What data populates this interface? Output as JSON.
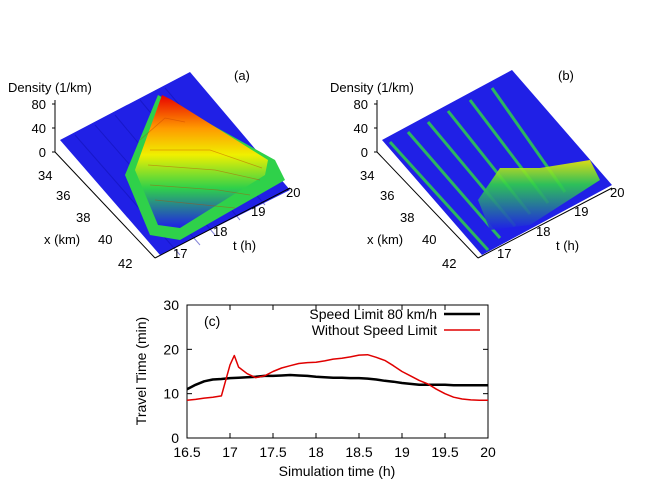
{
  "chart_data": [
    {
      "type": "surface",
      "panel_label": "(a)",
      "zlabel": "Density (1/km)",
      "z_ticks": [
        "0",
        "40",
        "80"
      ],
      "xlabel": "x (km)",
      "x_ticks": [
        "34",
        "36",
        "38",
        "40",
        "42"
      ],
      "ylabel": "t (h)",
      "t_ticks": [
        "17",
        "18",
        "19",
        "20"
      ],
      "color_stops": [
        "#1f1fe8",
        "#2fd14a",
        "#f0f000",
        "#ff9a00",
        "#e80000"
      ]
    },
    {
      "type": "surface",
      "panel_label": "(b)",
      "zlabel": "Density (1/km)",
      "z_ticks": [
        "0",
        "40",
        "80"
      ],
      "xlabel": "x (km)",
      "x_ticks": [
        "34",
        "36",
        "38",
        "40",
        "42"
      ],
      "ylabel": "t (h)",
      "t_ticks": [
        "17",
        "18",
        "19",
        "20"
      ],
      "color_stops": [
        "#1f1fe8",
        "#2fd14a",
        "#f0f000"
      ]
    },
    {
      "type": "line",
      "panel_label": "(c)",
      "xlabel": "Simulation time (h)",
      "ylabel": "Travel Time (min)",
      "xlim": [
        16.5,
        20
      ],
      "ylim": [
        0,
        30
      ],
      "x_ticks": [
        "16.5",
        "17",
        "17.5",
        "18",
        "18.5",
        "19",
        "19.5",
        "20"
      ],
      "y_ticks": [
        "0",
        "10",
        "20",
        "30"
      ],
      "legend_position": "top-right",
      "series": [
        {
          "name": "Speed Limit 80 km/h",
          "color": "#000000",
          "x": [
            16.5,
            16.6,
            16.7,
            16.8,
            16.9,
            17.0,
            17.1,
            17.2,
            17.3,
            17.4,
            17.5,
            17.6,
            17.7,
            17.8,
            17.9,
            18.0,
            18.1,
            18.2,
            18.3,
            18.4,
            18.5,
            18.6,
            18.7,
            18.8,
            18.9,
            19.0,
            19.1,
            19.2,
            19.3,
            19.4,
            19.5,
            19.6,
            19.7,
            19.8,
            19.9,
            20.0
          ],
          "y": [
            11.0,
            12.0,
            12.8,
            13.2,
            13.3,
            13.5,
            13.6,
            13.7,
            13.8,
            14.0,
            14.0,
            14.1,
            14.2,
            14.1,
            14.0,
            13.8,
            13.7,
            13.6,
            13.6,
            13.5,
            13.5,
            13.4,
            13.2,
            12.9,
            12.7,
            12.4,
            12.2,
            12.0,
            12.0,
            12.0,
            12.0,
            11.9,
            11.9,
            11.9,
            11.9,
            11.9
          ]
        },
        {
          "name": "Without Speed Limit",
          "color": "#e00000",
          "x": [
            16.5,
            16.6,
            16.7,
            16.8,
            16.9,
            16.95,
            17.0,
            17.05,
            17.1,
            17.2,
            17.3,
            17.4,
            17.5,
            17.6,
            17.7,
            17.8,
            17.9,
            18.0,
            18.1,
            18.2,
            18.3,
            18.4,
            18.5,
            18.6,
            18.7,
            18.8,
            18.9,
            19.0,
            19.1,
            19.2,
            19.3,
            19.4,
            19.5,
            19.6,
            19.7,
            19.8,
            19.9,
            20.0
          ],
          "y": [
            8.5,
            8.7,
            9.0,
            9.2,
            9.5,
            13.0,
            16.5,
            18.6,
            16.0,
            14.5,
            13.6,
            14.0,
            15.0,
            15.8,
            16.3,
            16.8,
            17.0,
            17.1,
            17.4,
            17.8,
            18.0,
            18.3,
            18.7,
            18.8,
            18.2,
            17.5,
            16.3,
            15.0,
            14.0,
            13.0,
            12.2,
            11.0,
            10.0,
            9.2,
            8.8,
            8.6,
            8.5,
            8.5
          ]
        }
      ]
    }
  ]
}
